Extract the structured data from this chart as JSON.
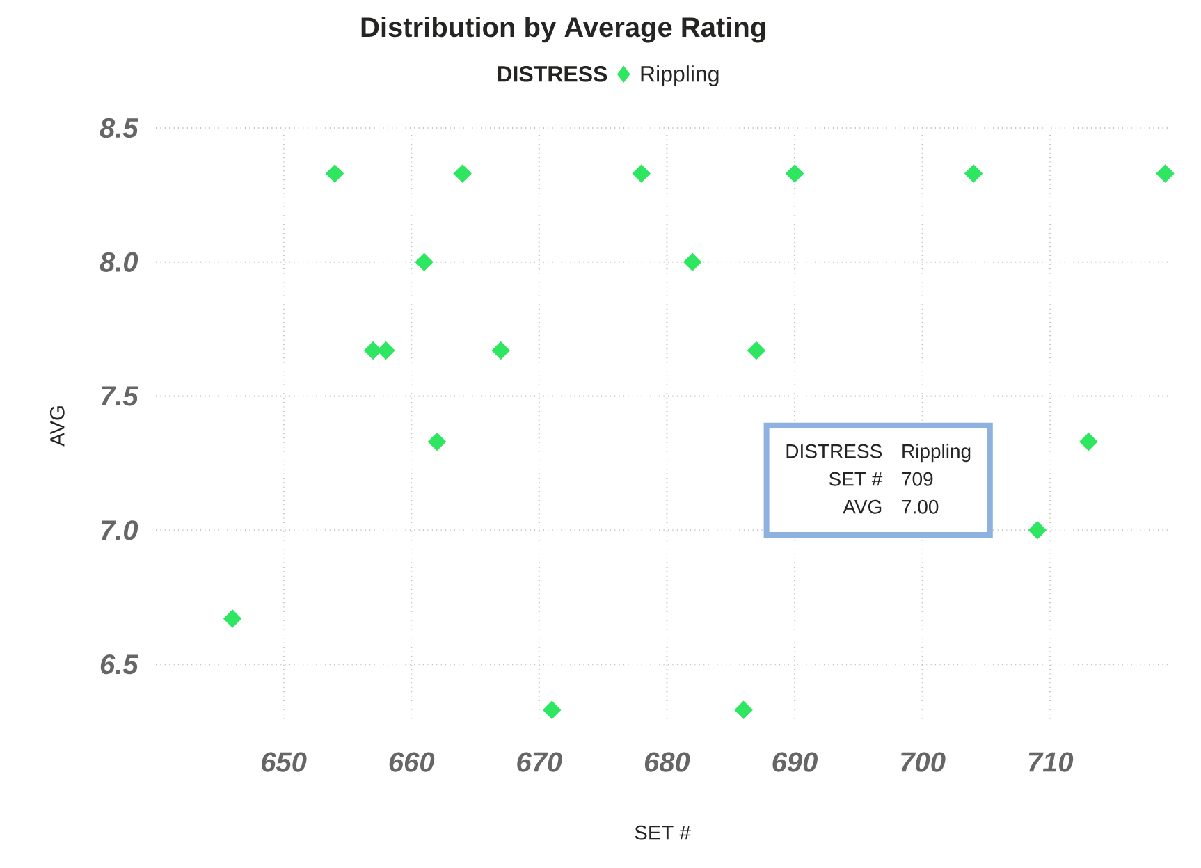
{
  "chart_data": {
    "type": "scatter",
    "title": "Distribution by Average Rating",
    "legend_title": "DISTRESS",
    "xlabel": "SET #",
    "ylabel": "AVG",
    "x": [
      646,
      654,
      664,
      678,
      661,
      657,
      658,
      667,
      662,
      671,
      682,
      690,
      704,
      719,
      687,
      713,
      709,
      686
    ],
    "series": [
      {
        "name": "Rippling",
        "color": "#2ee65f",
        "values": [
          6.67,
          8.33,
          8.33,
          8.33,
          8.0,
          7.67,
          7.67,
          7.67,
          7.33,
          6.33,
          8.0,
          8.33,
          8.33,
          8.33,
          7.67,
          7.33,
          7.0,
          6.33
        ]
      }
    ],
    "xlim": [
      640,
      719.3
    ],
    "ylim": [
      6.28,
      8.5
    ],
    "xticks": [
      650,
      660,
      670,
      680,
      690,
      700,
      710
    ],
    "yticks": [
      {
        "value": 6.5,
        "label": "6.5"
      },
      {
        "value": 7,
        "label": "7.0"
      },
      {
        "value": 7.5,
        "label": "7.5"
      },
      {
        "value": 8,
        "label": "8.0"
      },
      {
        "value": 8.5,
        "label": "8.5"
      }
    ],
    "grid": true,
    "legend": "top",
    "marker": "diamond",
    "annotations": [
      "DISTRESS",
      "Rippling",
      "SET #",
      "709",
      "AVG",
      "7.00"
    ]
  }
}
